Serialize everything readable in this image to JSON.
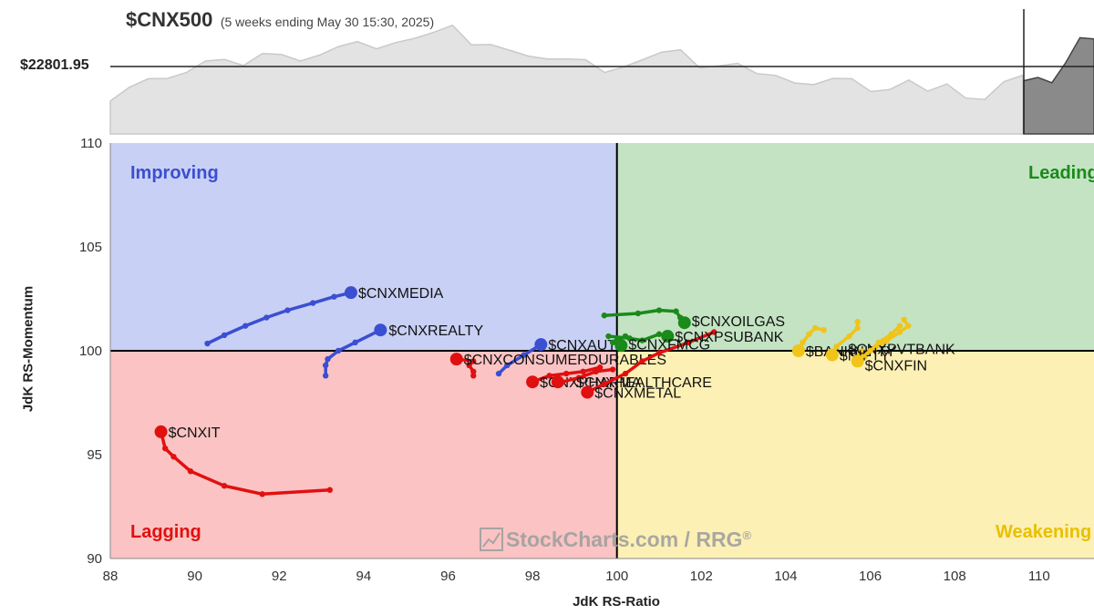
{
  "header": {
    "title": "$CNX500",
    "subtitle": "(5 weeks ending May 30 15:30, 2025)",
    "price_label": "$22801.95"
  },
  "watermark": {
    "text": "StockCharts.com / RRG",
    "registered_mark": "®"
  },
  "price_series": [
    21000,
    21420,
    21680,
    21690,
    21870,
    22220,
    22270,
    22080,
    22450,
    22420,
    22220,
    22400,
    22660,
    22810,
    22590,
    22780,
    22910,
    23090,
    23310,
    22710,
    22720,
    22550,
    22370,
    22280,
    22280,
    22260,
    21870,
    22040,
    22260,
    22490,
    22560,
    22010,
    22070,
    22150,
    21840,
    21780,
    21550,
    21500,
    21690,
    21680,
    21290,
    21350,
    21640,
    21300,
    21520,
    21090,
    21050,
    21590,
    21790
  ],
  "price_highlight": [
    21620,
    21720,
    21560,
    22180,
    22930,
    22890
  ],
  "chart_data": {
    "type": "scatter",
    "title": "",
    "xlabel": "JdK RS-Ratio",
    "ylabel": "JdK RS-Momentum",
    "xlim": [
      88,
      111.3
    ],
    "ylim": [
      90,
      110
    ],
    "x_ticks": [
      88,
      90,
      92,
      94,
      96,
      98,
      100,
      102,
      104,
      106,
      108,
      110
    ],
    "x_tick_labels": [
      "88",
      "90",
      "92",
      "94",
      "96",
      "98",
      "100",
      "102",
      "104",
      "106",
      "108",
      "110"
    ],
    "y_ticks": [
      90,
      95,
      100,
      105,
      110
    ],
    "y_tick_labels": [
      "90",
      "95",
      "100",
      "105",
      "110"
    ],
    "center": [
      100,
      100
    ],
    "quadrants": [
      {
        "name": "Improving",
        "color": "#3a4fd1",
        "fill": "#c9d0f5"
      },
      {
        "name": "Leading",
        "color": "#1a8a1a",
        "fill": "#c3e3c3"
      },
      {
        "name": "Lagging",
        "color": "#e01010",
        "fill": "#fbc3c3"
      },
      {
        "name": "Weakening",
        "color": "#e8c000",
        "fill": "#fdf0b4"
      }
    ],
    "series": [
      {
        "name": "$CNXMEDIA",
        "color": "#3a4fd1",
        "points": [
          [
            90.3,
            100.35
          ],
          [
            90.7,
            100.75
          ],
          [
            91.2,
            101.2
          ],
          [
            91.7,
            101.6
          ],
          [
            92.2,
            101.95
          ],
          [
            92.8,
            102.3
          ],
          [
            93.3,
            102.6
          ],
          [
            93.7,
            102.8
          ]
        ]
      },
      {
        "name": "$CNXREALTY",
        "color": "#3a4fd1",
        "points": [
          [
            93.1,
            98.8
          ],
          [
            93.1,
            99.3
          ],
          [
            93.15,
            99.6
          ],
          [
            93.4,
            100.0
          ],
          [
            93.8,
            100.4
          ],
          [
            94.4,
            101.0
          ]
        ]
      },
      {
        "name": "$CNXAUTO",
        "color": "#3a4fd1",
        "points": [
          [
            97.2,
            98.9
          ],
          [
            97.4,
            99.3
          ],
          [
            97.8,
            99.8
          ],
          [
            98.2,
            100.3
          ]
        ]
      },
      {
        "name": "$CNXIT",
        "color": "#e01010",
        "points": [
          [
            93.2,
            93.3
          ],
          [
            91.6,
            93.1
          ],
          [
            90.7,
            93.5
          ],
          [
            89.9,
            94.2
          ],
          [
            89.5,
            94.9
          ],
          [
            89.3,
            95.3
          ],
          [
            89.2,
            96.1
          ]
        ]
      },
      {
        "name": "$CNXCONSUMERDURABLES",
        "color": "#e01010",
        "points": [
          [
            96.6,
            98.8
          ],
          [
            96.6,
            99.0
          ],
          [
            96.5,
            99.3
          ],
          [
            96.6,
            99.5
          ],
          [
            96.2,
            99.6
          ]
        ]
      },
      {
        "name": "$CNXPHARMA",
        "color": "#e01010",
        "points": [
          [
            99.6,
            99.2
          ],
          [
            99.2,
            99.0
          ],
          [
            98.8,
            98.9
          ],
          [
            98.4,
            98.8
          ],
          [
            98.0,
            98.5
          ]
        ]
      },
      {
        "name": "$CNXHEALTHCARE",
        "color": "#e01010",
        "points": [
          [
            99.9,
            99.1
          ],
          [
            99.5,
            99.0
          ],
          [
            99.1,
            98.7
          ],
          [
            98.7,
            98.5
          ],
          [
            98.6,
            98.5
          ]
        ]
      },
      {
        "name": "$CNXMETAL",
        "color": "#e01010",
        "points": [
          [
            102.3,
            100.9
          ],
          [
            101.7,
            100.4
          ],
          [
            101.0,
            99.9
          ],
          [
            100.6,
            99.5
          ],
          [
            100.2,
            98.9
          ],
          [
            99.7,
            98.4
          ],
          [
            99.3,
            98.0
          ]
        ]
      },
      {
        "name": "$CNXOILGAS",
        "color": "#1a8a1a",
        "points": [
          [
            99.7,
            101.7
          ],
          [
            100.5,
            101.8
          ],
          [
            101.0,
            101.95
          ],
          [
            101.4,
            101.9
          ],
          [
            101.5,
            101.6
          ],
          [
            101.6,
            101.35
          ]
        ]
      },
      {
        "name": "$CNXPSUBANK",
        "color": "#1a8a1a",
        "points": [
          [
            99.8,
            100.7
          ],
          [
            100.3,
            100.6
          ],
          [
            100.6,
            100.5
          ],
          [
            101.0,
            100.8
          ],
          [
            101.2,
            100.7
          ]
        ]
      },
      {
        "name": "$CNXFMCG",
        "color": "#1a8a1a",
        "points": [
          [
            100.2,
            100.7
          ],
          [
            100.0,
            100.5
          ],
          [
            99.9,
            100.4
          ],
          [
            100.1,
            100.25
          ]
        ]
      },
      {
        "name": "$BANKNIFTY",
        "color": "#f0c419",
        "points": [
          [
            104.9,
            101.0
          ],
          [
            104.7,
            101.1
          ],
          [
            104.55,
            100.8
          ],
          [
            104.4,
            100.4
          ],
          [
            104.3,
            100.0
          ]
        ]
      },
      {
        "name": "$CNXPVTBANK",
        "color": "#f0c419",
        "points": [
          [
            106.8,
            101.5
          ],
          [
            106.9,
            101.2
          ],
          [
            106.7,
            100.9
          ],
          [
            106.4,
            100.5
          ],
          [
            106.1,
            100.1
          ],
          [
            105.8,
            99.8
          ]
        ]
      },
      {
        "name": "$NIFTY",
        "color": "#f0c419",
        "points": [
          [
            105.7,
            101.4
          ],
          [
            105.7,
            101.1
          ],
          [
            105.5,
            100.7
          ],
          [
            105.2,
            100.2
          ],
          [
            105.1,
            99.8
          ]
        ]
      },
      {
        "name": "$CNXFIN",
        "color": "#f0c419",
        "points": [
          [
            106.7,
            101.2
          ],
          [
            106.5,
            100.8
          ],
          [
            106.2,
            100.4
          ],
          [
            106.0,
            100.0
          ],
          [
            105.7,
            99.5
          ]
        ]
      }
    ],
    "grid": false,
    "legend": "none"
  }
}
